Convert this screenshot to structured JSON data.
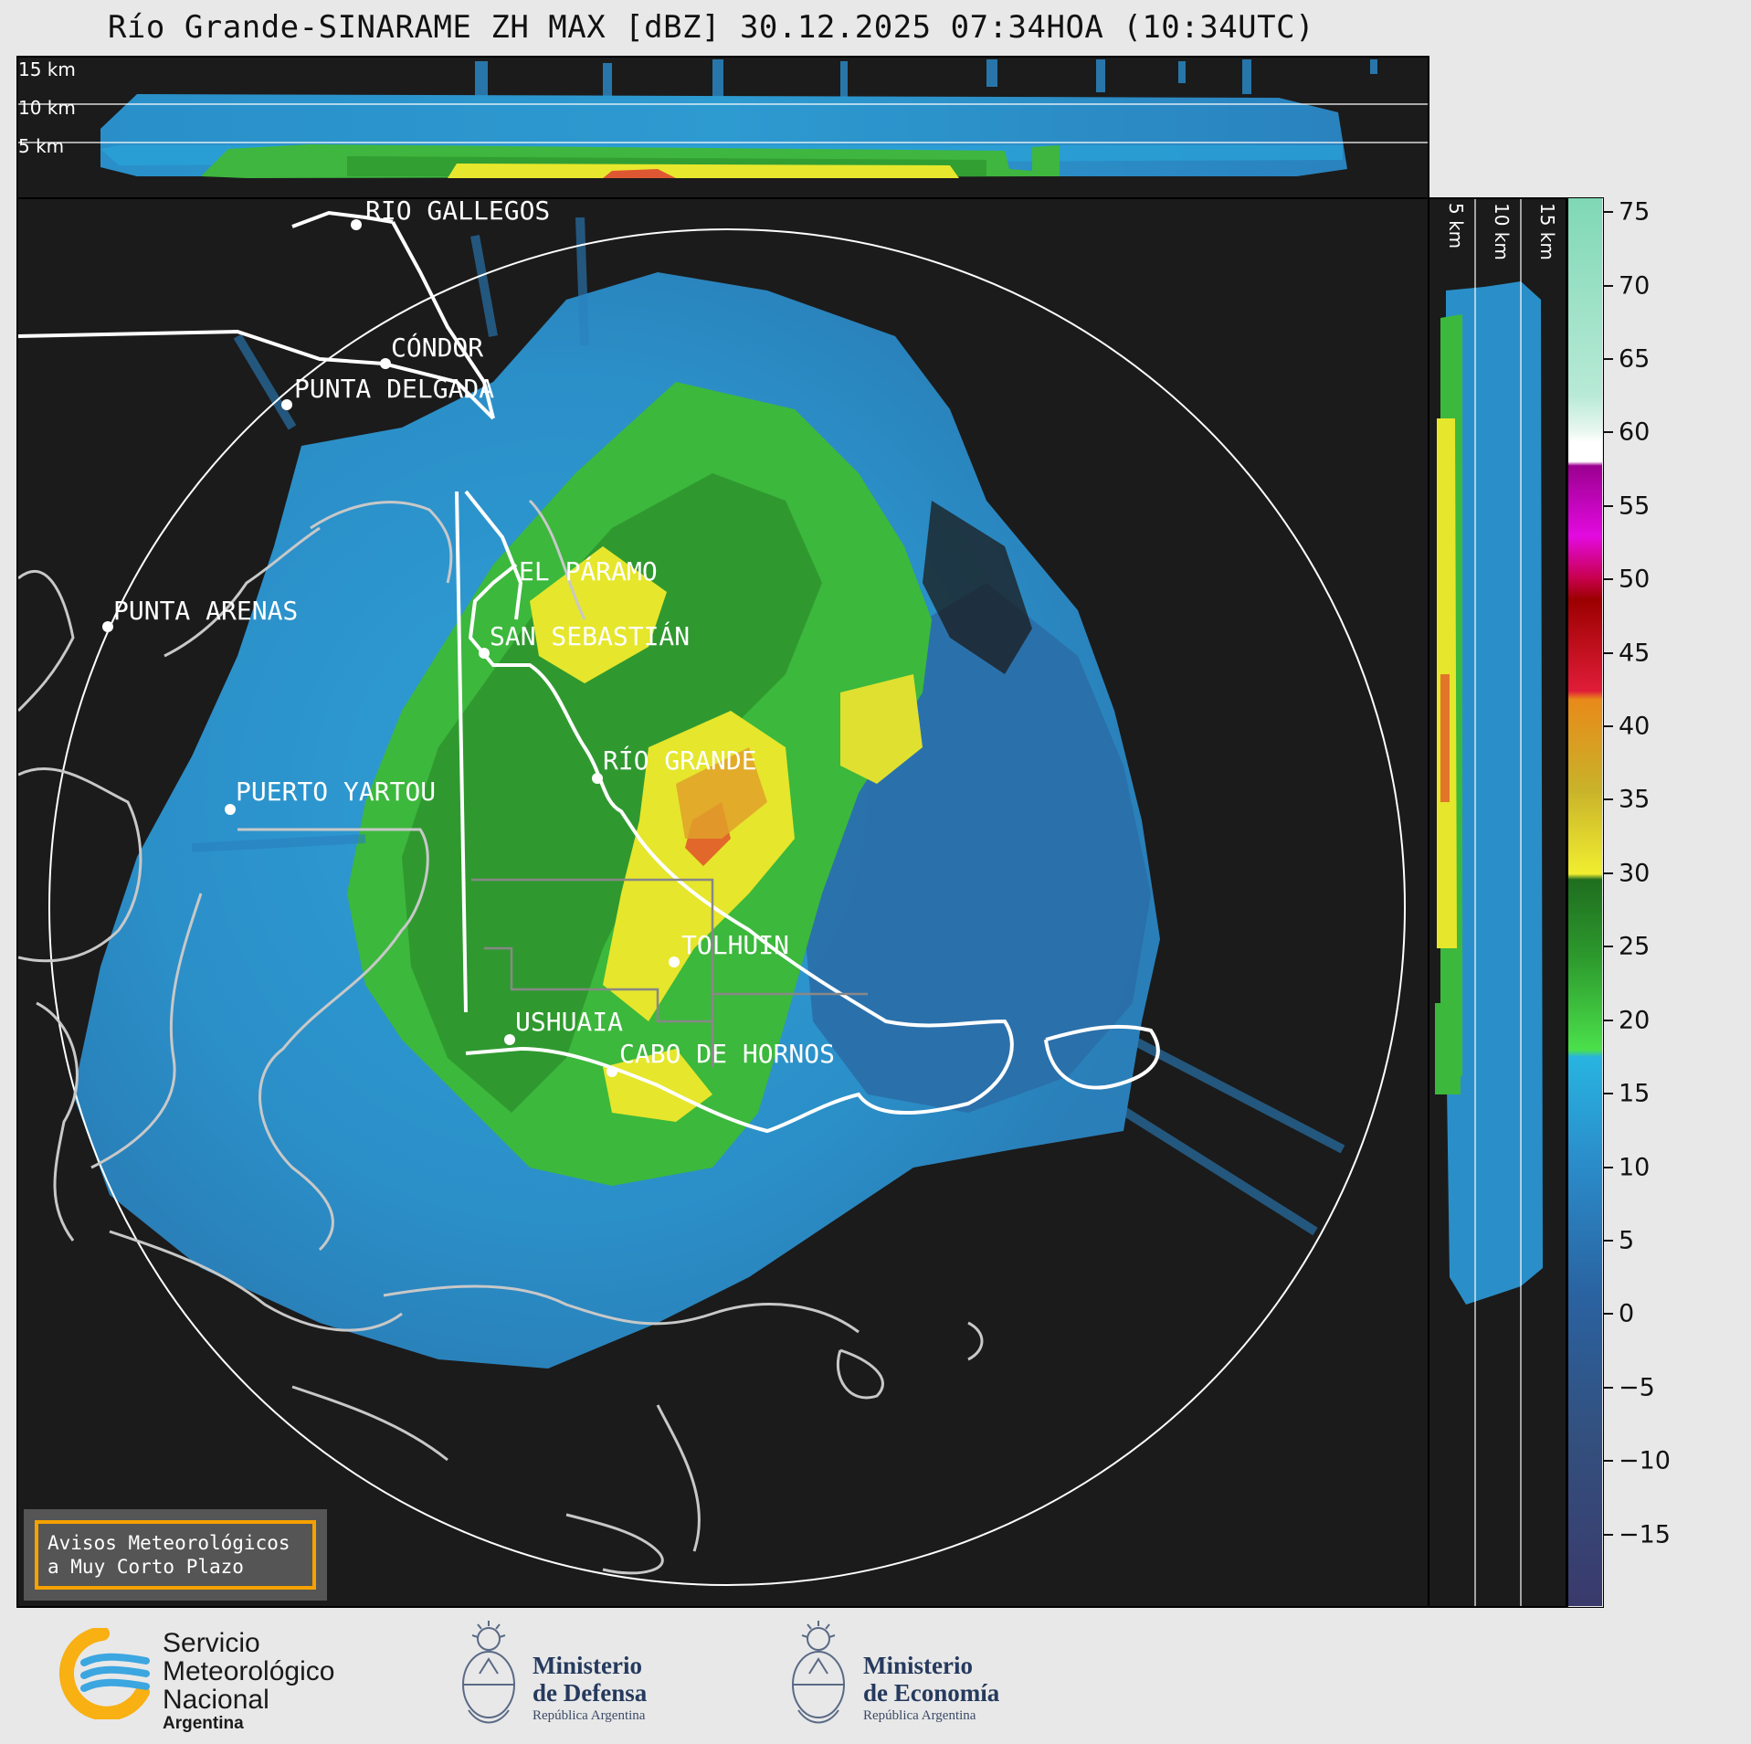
{
  "title": "Río Grande-SINARAME ZH MAX [dBZ] 30.12.2025 07:34HOA (10:34UTC)",
  "top_panel": {
    "altitudes": [
      "15 km",
      "10 km",
      "5 km"
    ]
  },
  "side_panel": {
    "altitudes": [
      "5 km",
      "10 km",
      "15 km"
    ]
  },
  "cities": [
    {
      "name": "RÍO GALLEGOS"
    },
    {
      "name": "CÓNDOR"
    },
    {
      "name": "PUNTA DELGADA"
    },
    {
      "name": "EL PÁRAMO"
    },
    {
      "name": "PUNTA ARENAS"
    },
    {
      "name": "SAN SEBASTIÁN"
    },
    {
      "name": "RÍO GRANDE"
    },
    {
      "name": "PUERTO YARTOU"
    },
    {
      "name": "TOLHUIN"
    },
    {
      "name": "USHUAIA"
    },
    {
      "name": "CABO DE HORNOS"
    }
  ],
  "colorbar": {
    "unit": "dBZ",
    "ticks": [
      75,
      70,
      65,
      60,
      55,
      50,
      45,
      40,
      35,
      30,
      25,
      20,
      15,
      10,
      5,
      0,
      -5,
      -10,
      -15
    ],
    "tick_labels": [
      "75",
      "70",
      "65",
      "60",
      "55",
      "50",
      "45",
      "40",
      "35",
      "30",
      "25",
      "20",
      "15",
      "10",
      "5",
      "0",
      "−5",
      "−10",
      "−15"
    ],
    "range": [
      -20,
      76
    ]
  },
  "notice": {
    "line1": "Avisos Meteorológicos",
    "line2": "a Muy Corto Plazo"
  },
  "footer": {
    "smn": {
      "line1": "Servicio",
      "line2": "Meteorológico",
      "line3": "Nacional",
      "line4": "Argentina"
    },
    "defensa": {
      "line1": "Ministerio",
      "line2": "de Defensa",
      "line3": "República Argentina"
    },
    "economia": {
      "line1": "Ministerio",
      "line2": "de Economía",
      "line3": "República Argentina"
    }
  },
  "colors": {
    "background": "#1b1b1b",
    "page": "#e8e8e8",
    "notice_border": "#f5a100"
  }
}
